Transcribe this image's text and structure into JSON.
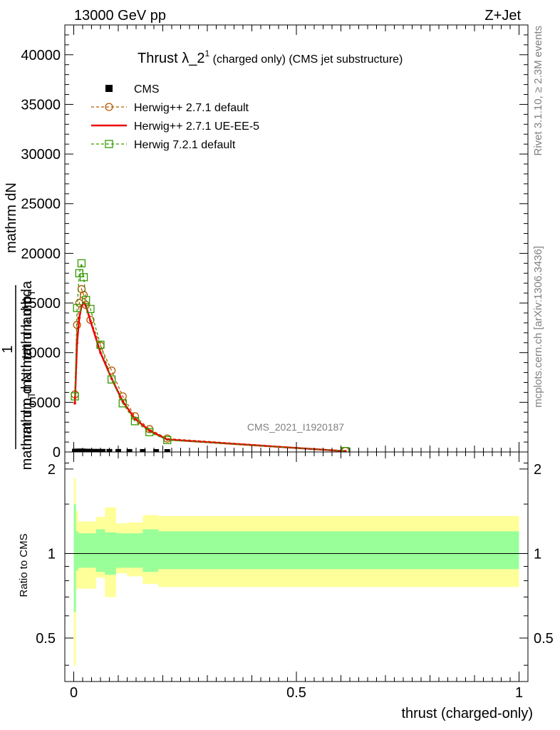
{
  "header": {
    "energy": "13000 GeV pp",
    "process": "Z+Jet"
  },
  "side": {
    "rivet": "Rivet 3.1.10, ≥ 2.3M events",
    "mcplots": "mcplots.cern.ch [arXiv:1306.3436]"
  },
  "watermark": "CMS_2021_I1920187",
  "chart_data": [
    {
      "type": "line",
      "title": "Thrust λ_2¹ (charged only) (CMS jet substructure)",
      "title_main": "Thrust λ_2",
      "title_sup": "1",
      "title_rest": " (charged only) (CMS jet substructure)",
      "ylabel_lines": [
        "mathrm dN",
        "mathrm d p_{T} mathrm d lambda",
        "1",
        "mathrm d N mathrm d p_{T}"
      ],
      "ylabel_text": {
        "l1": "mathrm dN",
        "l2a": "mathrm d p",
        "l2sub": "T",
        "l2b": "mathrm d lambda",
        "one": "1",
        "l3a": "mathrm d N",
        "l3mid": " mathrm d p",
        "l3sub": "T"
      },
      "ylim": [
        0,
        43000
      ],
      "xlim": [
        -0.02,
        1.02
      ],
      "yticks": [
        0,
        5000,
        10000,
        15000,
        20000,
        25000,
        30000,
        35000,
        40000
      ],
      "ytick_labels": [
        "0",
        "5000",
        "10000",
        "15000",
        "20000",
        "25000",
        "30000",
        "35000",
        "40000"
      ],
      "legend_position": "top-left",
      "series": [
        {
          "name": "CMS",
          "color": "#000000",
          "marker": "square",
          "x": [
            0.0025,
            0.0075,
            0.0125,
            0.0175,
            0.0225,
            0.0275,
            0.0325,
            0.0375,
            0.045,
            0.055,
            0.065,
            0.08,
            0.1,
            0.125,
            0.155,
            0.185,
            0.21
          ],
          "y": [
            40,
            45,
            50,
            50,
            45,
            40,
            35,
            30,
            25,
            22,
            18,
            14,
            10,
            8,
            6,
            4,
            3
          ]
        },
        {
          "name": "Herwig++ 2.7.1 default",
          "color": "#b35900",
          "marker": "circle",
          "x": [
            0.0025,
            0.0075,
            0.0125,
            0.0175,
            0.0225,
            0.0275,
            0.0375,
            0.06,
            0.085,
            0.11,
            0.1375,
            0.17,
            0.21,
            0.61
          ],
          "y": [
            5800,
            12800,
            15000,
            16400,
            15800,
            14800,
            13300,
            10700,
            8200,
            5600,
            3600,
            2300,
            1350,
            100
          ]
        },
        {
          "name": "Herwig++ 2.7.1 UE-EE-5",
          "color": "#ee0000",
          "marker": "none",
          "x": [
            0.0025,
            0.0075,
            0.0125,
            0.0175,
            0.0225,
            0.0275,
            0.0375,
            0.06,
            0.085,
            0.11,
            0.1375,
            0.17,
            0.21,
            0.61
          ],
          "y": [
            4900,
            11000,
            13500,
            14700,
            15000,
            14700,
            13200,
            10000,
            7400,
            5100,
            3350,
            2150,
            1250,
            80
          ]
        },
        {
          "name": "Herwig 7.2.1 default",
          "color": "#339900",
          "marker": "square-open",
          "x": [
            0.0025,
            0.0075,
            0.0125,
            0.0175,
            0.0225,
            0.0275,
            0.0375,
            0.06,
            0.085,
            0.11,
            0.1375,
            0.17,
            0.21,
            0.61
          ],
          "y": [
            5600,
            14500,
            18000,
            19000,
            17600,
            15300,
            14400,
            10800,
            7300,
            4900,
            3100,
            2000,
            1200,
            90
          ]
        }
      ]
    },
    {
      "type": "area",
      "ylabel": "Ratio to CMS",
      "xlabel": "thrust (charged-only)",
      "ylim": [
        0.35,
        2.3
      ],
      "log_y": true,
      "xlim": [
        -0.02,
        1.02
      ],
      "yticks": [
        0.5,
        1,
        2
      ],
      "ytick_labels": [
        "0.5",
        "1",
        "2"
      ],
      "xticks": [
        0,
        0.5,
        1
      ],
      "xtick_labels": [
        "0",
        "0.5",
        "1"
      ],
      "band_colors": {
        "outer": "#ffff99",
        "inner": "#99ff99"
      },
      "bins": [
        0,
        0.005,
        0.01,
        0.05,
        0.07,
        0.095,
        0.12,
        0.155,
        0.19,
        0.23,
        1.0
      ],
      "outer_band": {
        "low": [
          0.4,
          0.75,
          0.75,
          0.82,
          0.7,
          0.85,
          0.83,
          0.78,
          0.76,
          0.76
        ],
        "high": [
          1.85,
          1.42,
          1.3,
          1.35,
          1.46,
          1.28,
          1.29,
          1.37,
          1.36,
          1.36
        ]
      },
      "inner_band": {
        "low": [
          0.62,
          0.87,
          0.89,
          0.86,
          0.84,
          0.89,
          0.89,
          0.86,
          0.88,
          0.88
        ],
        "high": [
          1.5,
          1.2,
          1.18,
          1.22,
          1.19,
          1.18,
          1.18,
          1.22,
          1.2,
          1.2
        ]
      },
      "reference_value": 1
    }
  ]
}
